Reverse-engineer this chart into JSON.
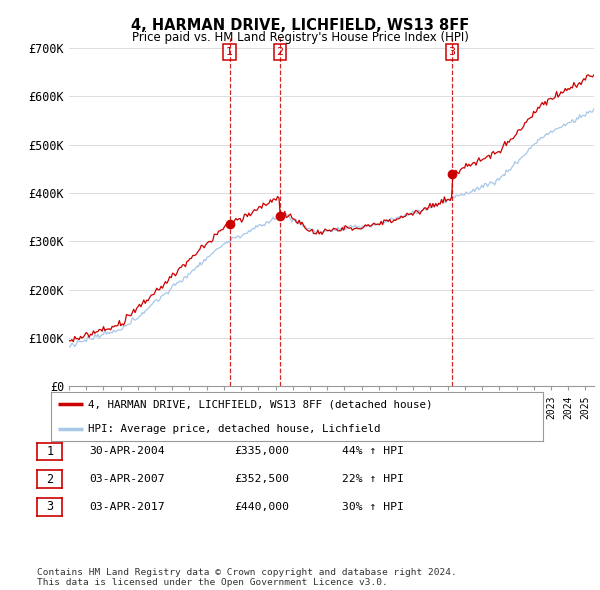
{
  "title": "4, HARMAN DRIVE, LICHFIELD, WS13 8FF",
  "subtitle": "Price paid vs. HM Land Registry's House Price Index (HPI)",
  "background_color": "#ffffff",
  "plot_bg_color": "#ffffff",
  "grid_color": "#dddddd",
  "hpi_color": "#a8c8e8",
  "price_color": "#cc0000",
  "ylim": [
    0,
    720000
  ],
  "yticks": [
    0,
    100000,
    200000,
    300000,
    400000,
    500000,
    600000,
    700000
  ],
  "ytick_labels": [
    "£0",
    "£100K",
    "£200K",
    "£300K",
    "£400K",
    "£500K",
    "£600K",
    "£700K"
  ],
  "purchases": [
    {
      "date_num": 2004.33,
      "price": 335000,
      "label": "1"
    },
    {
      "date_num": 2007.25,
      "price": 352500,
      "label": "2"
    },
    {
      "date_num": 2017.25,
      "price": 440000,
      "label": "3"
    }
  ],
  "legend_entries": [
    "4, HARMAN DRIVE, LICHFIELD, WS13 8FF (detached house)",
    "HPI: Average price, detached house, Lichfield"
  ],
  "table_rows": [
    {
      "num": "1",
      "date": "30-APR-2004",
      "price": "£335,000",
      "hpi": "44% ↑ HPI"
    },
    {
      "num": "2",
      "date": "03-APR-2007",
      "price": "£352,500",
      "hpi": "22% ↑ HPI"
    },
    {
      "num": "3",
      "date": "03-APR-2017",
      "price": "£440,000",
      "hpi": "30% ↑ HPI"
    }
  ],
  "footer": "Contains HM Land Registry data © Crown copyright and database right 2024.\nThis data is licensed under the Open Government Licence v3.0.",
  "xmin": 1995.0,
  "xmax": 2025.5
}
